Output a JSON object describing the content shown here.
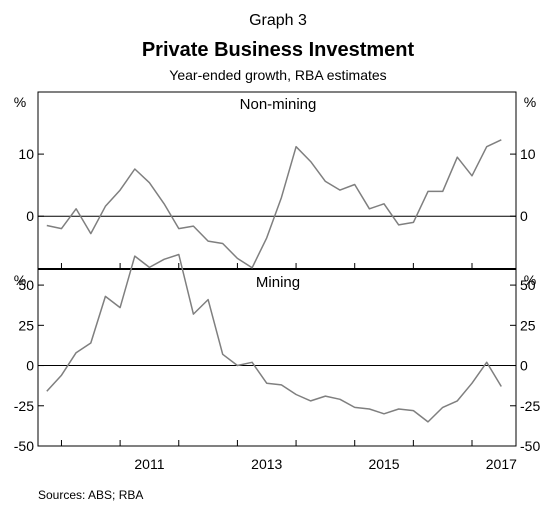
{
  "chart_data": {
    "type": "line",
    "graph_label": "Graph 3",
    "title": "Private Business Investment",
    "subtitle": "Year-ended growth, RBA estimates",
    "source": "Sources:   ABS; RBA",
    "x_tick_labels": [
      "2011",
      "2013",
      "2015",
      "2017"
    ],
    "panels": [
      {
        "name": "Non-mining",
        "unit": "%",
        "ylim": [
          -8.5,
          20
        ],
        "yticks": [
          10,
          0
        ],
        "series": [
          {
            "x": [
              2009.75,
              2010.0,
              2010.25,
              2010.5,
              2010.75,
              2011.0,
              2011.25,
              2011.5,
              2011.75,
              2012.0,
              2012.25,
              2012.5,
              2012.75,
              2013.0,
              2013.25,
              2013.5,
              2013.75,
              2014.0,
              2014.25,
              2014.5,
              2014.75,
              2015.0,
              2015.25,
              2015.5,
              2015.75,
              2016.0,
              2016.25,
              2016.5,
              2016.75,
              2017.0,
              2017.25,
              2017.5
            ],
            "values": [
              -1.5,
              -2.0,
              1.2,
              -2.8,
              1.6,
              4.2,
              7.6,
              5.4,
              2.0,
              -2.0,
              -1.6,
              -4.0,
              -4.4,
              -6.8,
              -8.3,
              -3.5,
              3.0,
              11.2,
              8.8,
              5.6,
              4.2,
              5.1,
              1.2,
              2.0,
              -1.4,
              -1.0,
              4.0,
              4.0,
              9.5,
              6.5,
              11.2,
              12.3
            ]
          }
        ]
      },
      {
        "name": "Mining",
        "unit": "%",
        "ylim": [
          -50,
          60
        ],
        "yticks": [
          50,
          25,
          0,
          -25,
          -50
        ],
        "series": [
          {
            "x": [
              2009.75,
              2010.0,
              2010.25,
              2010.5,
              2010.75,
              2011.0,
              2011.25,
              2011.5,
              2011.75,
              2012.0,
              2012.25,
              2012.5,
              2012.75,
              2013.0,
              2013.25,
              2013.5,
              2013.75,
              2014.0,
              2014.25,
              2014.5,
              2014.75,
              2015.0,
              2015.25,
              2015.5,
              2015.75,
              2016.0,
              2016.25,
              2016.5,
              2016.75,
              2017.0,
              2017.25,
              2017.5
            ],
            "values": [
              -16,
              -6,
              8,
              14,
              43,
              36,
              68,
              61,
              66,
              69,
              32,
              41,
              7,
              0,
              2,
              -11,
              -12,
              -18,
              -22,
              -19,
              -21,
              -26,
              -27,
              -30,
              -27,
              -28,
              -35,
              -26,
              -22,
              -11,
              2,
              -13
            ]
          }
        ]
      }
    ],
    "grid": false,
    "legend": "none",
    "colors": {
      "line": "#7f7f7f",
      "axis": "#000000",
      "zero_line": "#000000"
    }
  }
}
